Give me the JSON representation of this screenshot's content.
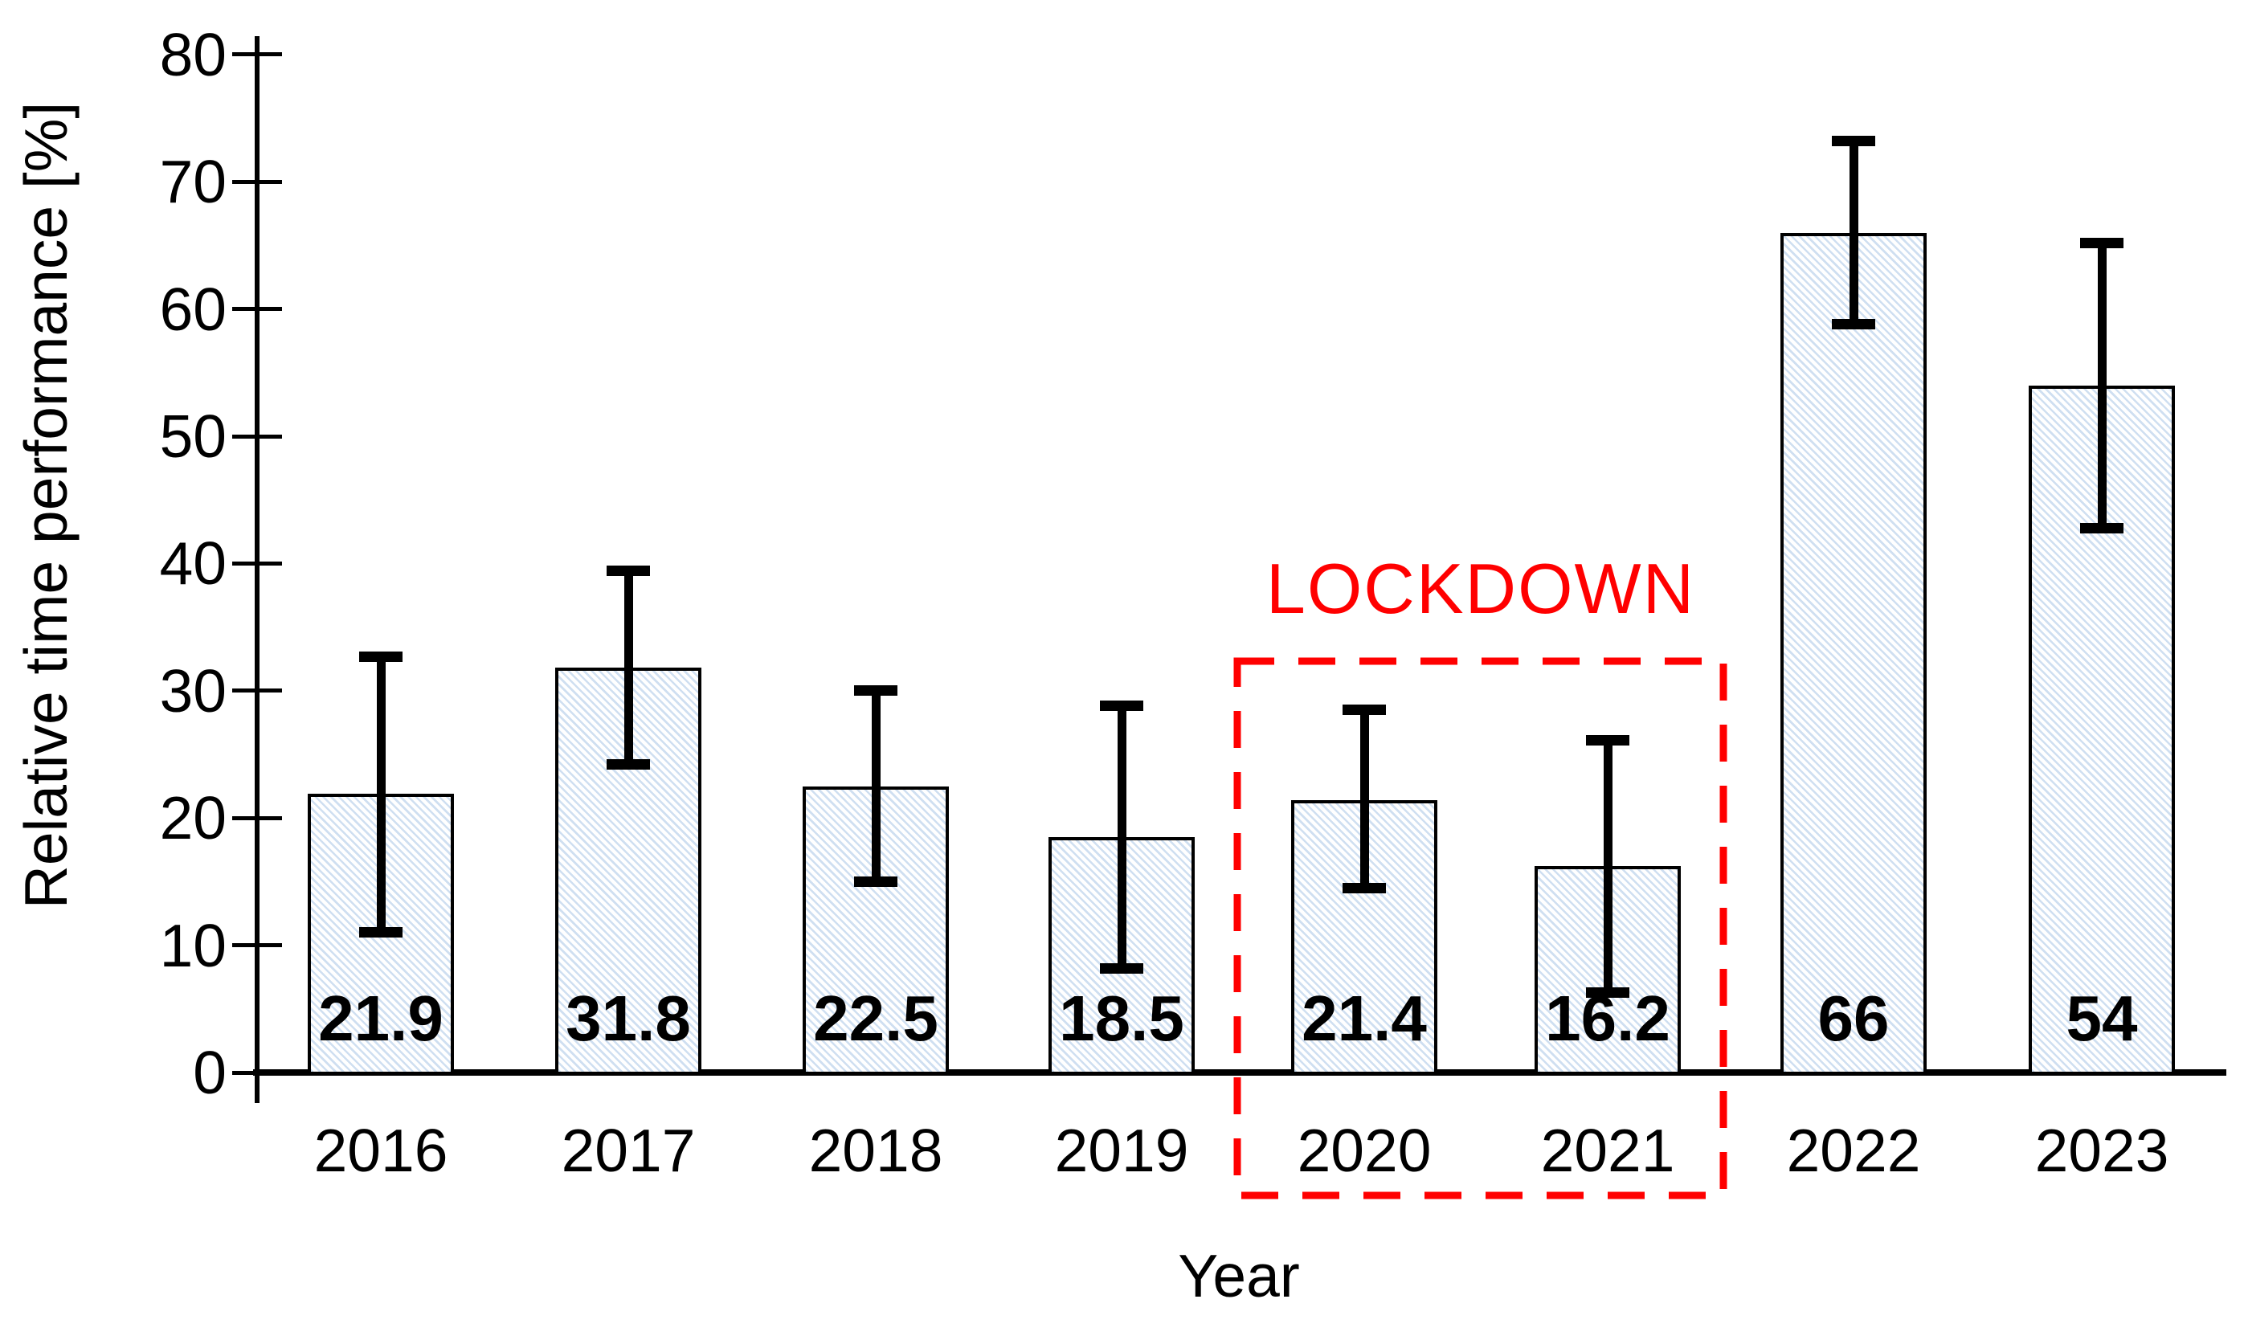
{
  "chart_data": {
    "type": "bar",
    "title": "",
    "xlabel": "Year",
    "ylabel": "Relative time performance [%]",
    "categories": [
      "2016",
      "2017",
      "2018",
      "2019",
      "2020",
      "2021",
      "2022",
      "2023"
    ],
    "values": [
      21.9,
      31.8,
      22.5,
      18.5,
      21.4,
      16.2,
      66,
      54
    ],
    "bar_labels": [
      "21.9",
      "31.8",
      "22.5",
      "18.5",
      "21.4",
      "16.2",
      "66",
      "54"
    ],
    "error_low": [
      11.0,
      24.2,
      15.0,
      8.2,
      14.5,
      6.3,
      58.8,
      42.8
    ],
    "error_high": [
      32.7,
      39.4,
      30.0,
      28.8,
      28.5,
      26.1,
      73.2,
      65.2
    ],
    "ylim": [
      0,
      80
    ],
    "yticks": [
      0,
      10,
      20,
      30,
      40,
      50,
      60,
      70,
      80
    ],
    "grid": false,
    "legend": null,
    "annotation": {
      "label": "LOCKDOWN",
      "categories": [
        "2020",
        "2021"
      ]
    },
    "colors": {
      "bar_fill": "#ffffff",
      "bar_hatch": "#cfdff1",
      "bar_border": "#000000",
      "error_bar": "#000000",
      "axis": "#000000",
      "text": "#000000",
      "annotation": "#ff0000"
    }
  }
}
